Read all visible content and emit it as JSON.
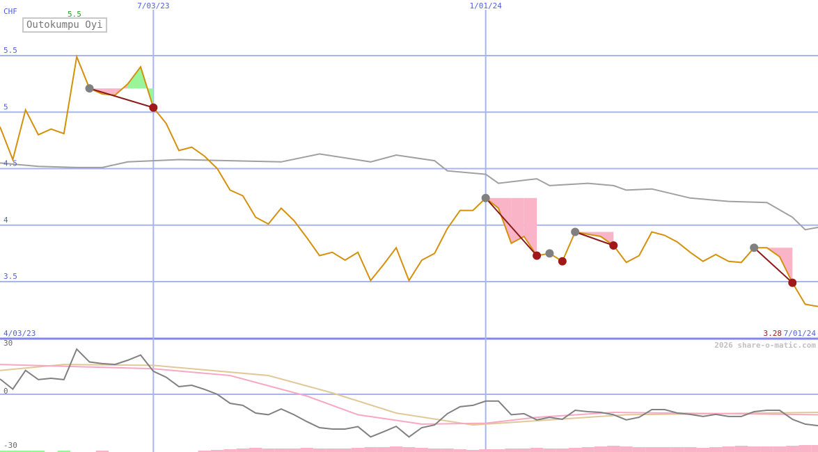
{
  "chart_data": {
    "type": "line",
    "title": "Outokumpu Oyi",
    "currency": "CHF",
    "max_label": "5.5",
    "last_price_label": "3.28",
    "watermark": "2026 share-o-matic.com",
    "x_dates": {
      "start": "4/03/23",
      "mid1": "7/03/23",
      "mid2": "1/01/24",
      "end": "7/01/24"
    },
    "date_line_indices": [
      12,
      38
    ],
    "price_yticks": [
      "5.5",
      "5",
      "4.5",
      "4",
      "3.5"
    ],
    "price_ylim": [
      3.0,
      5.5
    ],
    "price": [
      4.87,
      4.58,
      5.02,
      4.8,
      4.85,
      4.81,
      5.49,
      5.21,
      5.16,
      5.15,
      5.25,
      5.4,
      5.04,
      4.9,
      4.66,
      4.69,
      4.61,
      4.5,
      4.31,
      4.26,
      4.07,
      4.01,
      4.15,
      4.04,
      3.89,
      3.73,
      3.76,
      3.69,
      3.76,
      3.51,
      3.65,
      3.8,
      3.51,
      3.69,
      3.75,
      3.97,
      4.13,
      4.13,
      4.24,
      4.15,
      3.84,
      3.9,
      3.73,
      3.75,
      3.68,
      3.94,
      3.92,
      3.9,
      3.82,
      3.67,
      3.73,
      3.94,
      3.91,
      3.85,
      3.76,
      3.68,
      3.74,
      3.68,
      3.67,
      3.8,
      3.8,
      3.72,
      3.49,
      3.3,
      3.28
    ],
    "price_ma": [
      [
        0,
        4.55
      ],
      [
        3,
        4.52
      ],
      [
        6,
        4.51
      ],
      [
        8,
        4.51
      ],
      [
        10,
        4.56
      ],
      [
        14,
        4.58
      ],
      [
        18,
        4.57
      ],
      [
        22,
        4.56
      ],
      [
        25,
        4.63
      ],
      [
        29,
        4.56
      ],
      [
        31,
        4.62
      ],
      [
        34,
        4.57
      ],
      [
        35,
        4.48
      ],
      [
        38,
        4.45
      ],
      [
        39,
        4.37
      ],
      [
        42,
        4.41
      ],
      [
        43,
        4.35
      ],
      [
        46,
        4.37
      ],
      [
        48,
        4.35
      ],
      [
        49,
        4.31
      ],
      [
        51,
        4.32
      ],
      [
        54,
        4.24
      ],
      [
        57,
        4.21
      ],
      [
        60,
        4.2
      ],
      [
        62,
        4.07
      ],
      [
        63,
        3.96
      ],
      [
        64,
        3.98
      ]
    ],
    "buy_markers": [
      7,
      38,
      43,
      45,
      59
    ],
    "sell_markers": [
      12,
      42,
      44,
      48,
      62
    ],
    "trades": [
      [
        7,
        12
      ],
      [
        38,
        42
      ],
      [
        45,
        48
      ],
      [
        59,
        62
      ]
    ],
    "osc_yticks": [
      "30",
      "0",
      "-30"
    ],
    "osc_ylim": [
      -33,
      30
    ],
    "oscillator": [
      9,
      3,
      14,
      8.6,
      9.4,
      8.6,
      26.5,
      19,
      18,
      17.5,
      20,
      23,
      13.5,
      10,
      4.5,
      5.3,
      2.9,
      0,
      -5.3,
      -6.5,
      -11,
      -12,
      -8.6,
      -12,
      -16,
      -19.6,
      -20.4,
      -20.4,
      -19,
      -25,
      -22,
      -18.8,
      -25,
      -19.6,
      -18,
      -11.4,
      -7.3,
      -6.5,
      -4,
      -4,
      -12,
      -11.4,
      -15,
      -13.5,
      -14.7,
      -9.4,
      -10.2,
      -10.6,
      -12,
      -15,
      -13.5,
      -9,
      -9,
      -11,
      -11.8,
      -13,
      -11.8,
      -13,
      -13,
      -10.2,
      -9.4,
      -9.4,
      -14.7,
      -17.5,
      -18.4
    ],
    "osc_ma_pink": [
      [
        0,
        17.5
      ],
      [
        12,
        15
      ],
      [
        18,
        11
      ],
      [
        24,
        -1
      ],
      [
        28,
        -12
      ],
      [
        33,
        -17.5
      ],
      [
        38,
        -17
      ],
      [
        42,
        -13.5
      ],
      [
        48,
        -10.6
      ],
      [
        64,
        -12
      ]
    ],
    "osc_ma_tan": [
      [
        0,
        14
      ],
      [
        5,
        17.5
      ],
      [
        12,
        17
      ],
      [
        21,
        11
      ],
      [
        26,
        0.8
      ],
      [
        31,
        -11
      ],
      [
        37,
        -18
      ],
      [
        41,
        -16
      ],
      [
        49,
        -12
      ],
      [
        64,
        -10.6
      ]
    ],
    "histogram": [
      2,
      2,
      2,
      2,
      0,
      2,
      0,
      0,
      -2,
      0,
      0,
      0,
      0,
      0,
      0,
      0,
      -2,
      -3,
      -4,
      -5,
      -6,
      -5,
      -5,
      -5,
      -6,
      -5,
      -5,
      -5,
      -6,
      -7,
      -7,
      -8,
      -7,
      -6,
      -5,
      -5,
      -4,
      -3,
      -4,
      -4,
      -5,
      -5,
      -6,
      -5,
      -5,
      -6,
      -7,
      -8,
      -9,
      -8,
      -7,
      -7,
      -7,
      -7,
      -7,
      -6,
      -7,
      -8,
      -9,
      -8,
      -8,
      -8,
      -9,
      -10,
      -10
    ],
    "colors": {
      "price": "#d4900a",
      "ma": "#a0a0a0",
      "grid": "#a8b4f0",
      "axis": "#7f8ae8",
      "label": "#5060e0",
      "buy": "#808080",
      "sell": "#a01818",
      "trade": "#8b1a1a",
      "loss": "#f9b4c8",
      "gain": "#99f59a",
      "osc": "#808080",
      "osc_pink": "#f8a8c0",
      "osc_tan": "#e0c898",
      "hist_pos": "#99f59a",
      "hist_neg": "#f9b4c8",
      "max": "#20a020",
      "last": "#a01818",
      "watermark": "#c0c0c0"
    }
  }
}
